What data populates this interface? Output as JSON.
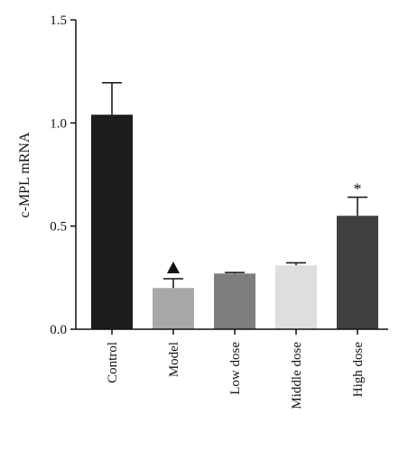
{
  "chart_data": {
    "type": "bar",
    "title": "",
    "xlabel": "",
    "ylabel": "c-MPL mRNA",
    "ylim": [
      0,
      1.5
    ],
    "yticks": [
      "0.0",
      "0.5",
      "1.0",
      "1.5"
    ],
    "ytick_values": [
      0,
      0.5,
      1.0,
      1.5
    ],
    "grid": false,
    "categories": [
      "Control",
      "Model",
      "Low dose",
      "Middle dose",
      "High dose"
    ],
    "values": [
      1.04,
      0.2,
      0.27,
      0.31,
      0.55
    ],
    "errors": [
      0.155,
      0.045,
      0.005,
      0.012,
      0.09
    ],
    "colors": [
      "#1c1c1c",
      "#a8a8a8",
      "#7e7e7e",
      "#dedede",
      "#404040"
    ],
    "markers": [
      "",
      "▲",
      "",
      "",
      "*"
    ]
  }
}
